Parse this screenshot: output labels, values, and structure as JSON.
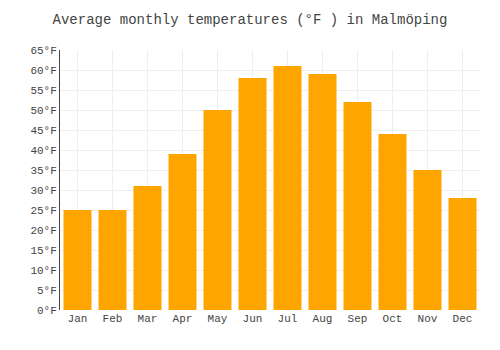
{
  "chart_data": {
    "type": "bar",
    "title": "Average monthly temperatures (°F ) in Malmöping",
    "categories": [
      "Jan",
      "Feb",
      "Mar",
      "Apr",
      "May",
      "Jun",
      "Jul",
      "Aug",
      "Sep",
      "Oct",
      "Nov",
      "Dec"
    ],
    "values": [
      25,
      25,
      31,
      39,
      50,
      58,
      61,
      59,
      52,
      44,
      35,
      28
    ],
    "color": "#FFA500",
    "ylim": [
      0,
      65
    ],
    "yticks": [
      {
        "value": 0,
        "label": "0°F"
      },
      {
        "value": 5,
        "label": "5°F"
      },
      {
        "value": 10,
        "label": "10°F"
      },
      {
        "value": 15,
        "label": "15°F"
      },
      {
        "value": 20,
        "label": "20°F"
      },
      {
        "value": 25,
        "label": "25°F"
      },
      {
        "value": 30,
        "label": "30°F"
      },
      {
        "value": 35,
        "label": "35°F"
      },
      {
        "value": 40,
        "label": "40°F"
      },
      {
        "value": 45,
        "label": "45°F"
      },
      {
        "value": 50,
        "label": "50°F"
      },
      {
        "value": 55,
        "label": "55°F"
      },
      {
        "value": 60,
        "label": "60°F"
      },
      {
        "value": 65,
        "label": "65°F"
      }
    ],
    "grid": true
  }
}
